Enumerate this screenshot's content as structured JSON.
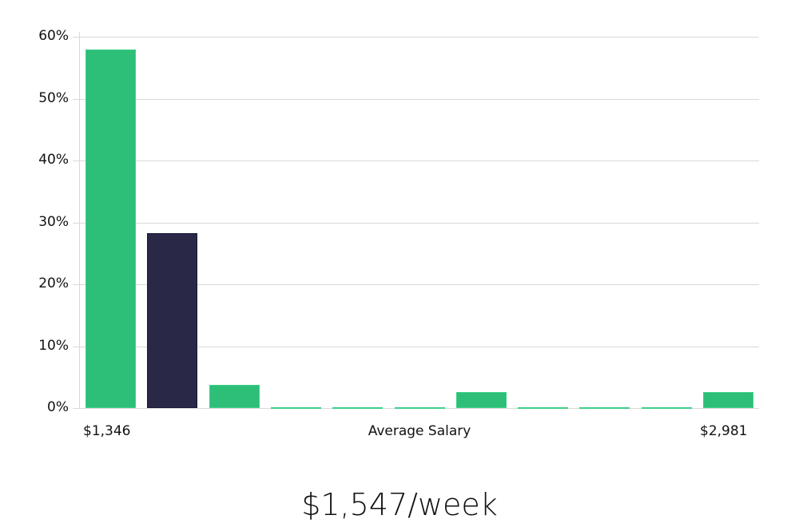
{
  "chart_data": {
    "type": "bar",
    "title": "",
    "xlabel": "Average Salary",
    "ylabel": "",
    "ylim": [
      0,
      60
    ],
    "yticks": [
      "0%",
      "10%",
      "20%",
      "30%",
      "40%",
      "50%",
      "60%"
    ],
    "x_range_labels": {
      "min": "$1,346",
      "max": "$2,981"
    },
    "categories": [
      "bin1",
      "bin2",
      "bin3",
      "bin4",
      "bin5",
      "bin6",
      "bin7",
      "bin8",
      "bin9",
      "bin10",
      "bin11"
    ],
    "values": [
      57.9,
      28.2,
      3.8,
      0.1,
      0.1,
      0.1,
      2.6,
      0.1,
      0.1,
      0.1,
      2.6
    ],
    "highlight_index": 1,
    "colors": {
      "default": "#2dbe78",
      "highlight": "#2a2847"
    },
    "grid": true
  },
  "headline": "$1,547/week"
}
